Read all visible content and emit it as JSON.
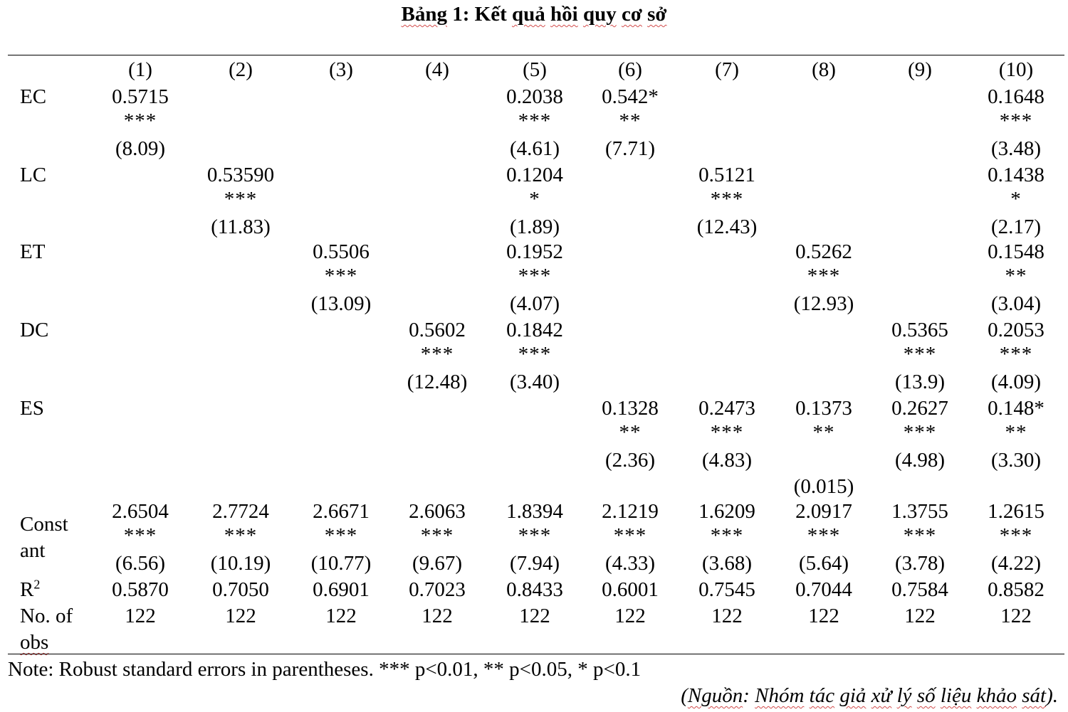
{
  "title": {
    "w1": "Bảng",
    "w2": "1: Kết",
    "w3": "quả",
    "w4": "hồi",
    "w5": "quy",
    "w6": "cơ",
    "w7": "sở"
  },
  "columns": [
    "(1)",
    "(2)",
    "(3)",
    "(4)",
    "(5)",
    "(6)",
    "(7)",
    "(8)",
    "(9)",
    "(10)"
  ],
  "rows": {
    "ec": {
      "label": "EC",
      "c1": {
        "coef": "0.5715",
        "stars": "***",
        "se": "(8.09)"
      },
      "c5": {
        "coef": "0.2038",
        "stars": "***",
        "se": "(4.61)"
      },
      "c6": {
        "coef": "0.542*",
        "stars": "**",
        "se": "(7.71)"
      },
      "c10": {
        "coef": "0.1648",
        "stars": "***",
        "se": "(3.48)"
      }
    },
    "lc": {
      "label": "LC",
      "c2": {
        "coef": "0.53590",
        "stars": "***",
        "se": "(11.83)"
      },
      "c5": {
        "coef": "0.1204",
        "stars": "*",
        "se": "(1.89)"
      },
      "c7": {
        "coef": "0.5121",
        "stars": "***",
        "se": "(12.43)"
      },
      "c10": {
        "coef": "0.1438",
        "stars": "*",
        "se": "(2.17)"
      }
    },
    "et": {
      "label": "ET",
      "c3": {
        "coef": "0.5506",
        "stars": "***",
        "se": "(13.09)"
      },
      "c5": {
        "coef": "0.1952",
        "stars": "***",
        "se": "(4.07)"
      },
      "c8": {
        "coef": "0.5262",
        "stars": "***",
        "se": "(12.93)"
      },
      "c10": {
        "coef": "0.1548",
        "stars": "**",
        "se": "(3.04)"
      }
    },
    "dc": {
      "label": "DC",
      "c4": {
        "coef": "0.5602",
        "stars": "***",
        "se": "(12.48)"
      },
      "c5": {
        "coef": "0.1842",
        "stars": "***",
        "se": "(3.40)"
      },
      "c9": {
        "coef": "0.5365",
        "stars": "***",
        "se": "(13.9)"
      },
      "c10": {
        "coef": "0.2053",
        "stars": "***",
        "se": "(4.09)"
      }
    },
    "es": {
      "label": "ES",
      "c6": {
        "coef": "0.1328",
        "stars": "**",
        "se": "(2.36)"
      },
      "c7": {
        "coef": "0.2473",
        "stars": "***",
        "se": "(4.83)"
      },
      "c8": {
        "coef": "0.1373",
        "stars": "**",
        "se": "(0.015)"
      },
      "c9": {
        "coef": "0.2627",
        "stars": "***",
        "se": "(4.98)"
      },
      "c10": {
        "coef": "0.148*",
        "stars": "**",
        "se": "(3.30)"
      }
    },
    "constant": {
      "label1": "Const",
      "label2": "ant",
      "coefs": [
        "2.6504",
        "2.7724",
        "2.6671",
        "2.6063",
        "1.8394",
        "2.1219",
        "1.6209",
        "2.0917",
        "1.3755",
        "1.2615"
      ],
      "stars": [
        "***",
        "***",
        "***",
        "***",
        "***",
        "***",
        "***",
        "***",
        "***",
        "***"
      ],
      "se": [
        "(6.56)",
        "(10.19)",
        "(10.77)",
        "(9.67)",
        "(7.94)",
        "(4.33)",
        "(3.68)",
        "(5.64)",
        "(3.78)",
        "(4.22)"
      ]
    },
    "r2": {
      "label": "R",
      "sup": "2",
      "values": [
        "0.5870",
        "0.7050",
        "0.6901",
        "0.7023",
        "0.8433",
        "0.6001",
        "0.7545",
        "0.7044",
        "0.7584",
        "0.8582"
      ]
    },
    "obs": {
      "label1": "No. of",
      "label2": "obs",
      "values": [
        "122",
        "122",
        "122",
        "122",
        "122",
        "122",
        "122",
        "122",
        "122",
        "122"
      ]
    }
  },
  "note": "Note: Robust standard errors in parentheses. *** p<0.01, ** p<0.05, * p<0.1",
  "source": {
    "open": "(",
    "w1": "Nguồn",
    "colon": ": ",
    "w2": "Nhóm",
    "w3": "tác",
    "w4": "giả",
    "w5": "xử",
    "w6": "lý",
    "w7": "số",
    "w8": "liệu",
    "w9": "khảo",
    "w10": "sát",
    "close": ")."
  }
}
